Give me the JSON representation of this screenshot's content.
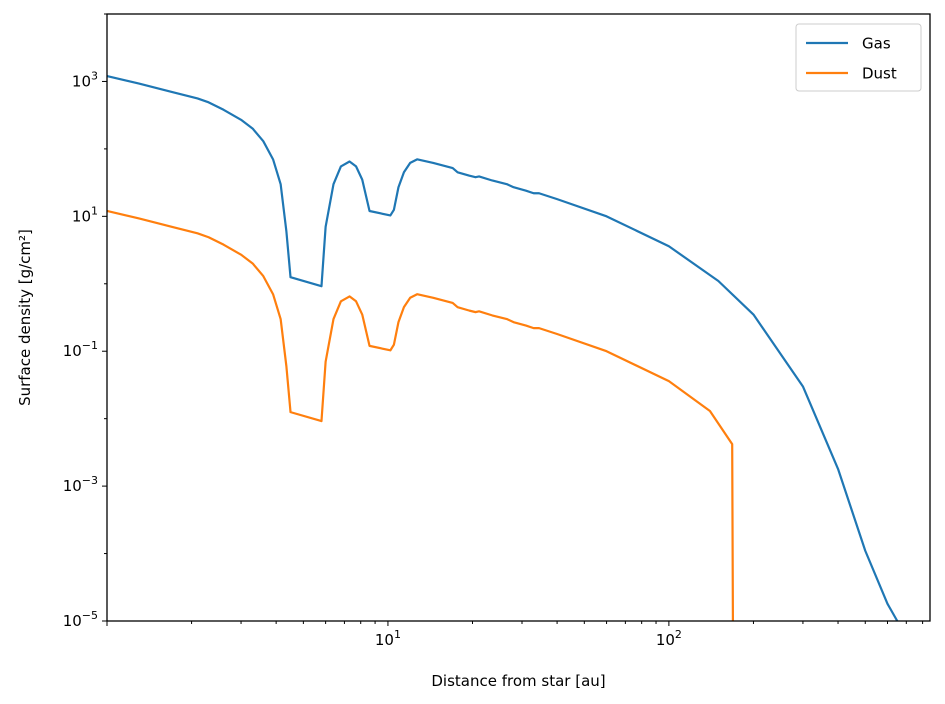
{
  "chart_data": {
    "type": "line",
    "xlabel": "Distance from star [au]",
    "ylabel": "Surface density [g/cm²]",
    "xscale": "log",
    "yscale": "log",
    "xlim": [
      1.0,
      850
    ],
    "ylim": [
      1e-05,
      10000
    ],
    "grid": false,
    "legend_position": "top-right",
    "x_tick_labels": [
      {
        "value": 10,
        "base": "10",
        "exp": "1"
      },
      {
        "value": 100,
        "base": "10",
        "exp": "2"
      }
    ],
    "y_tick_labels": [
      {
        "value": 1e-05,
        "base": "10",
        "exp": "−5"
      },
      {
        "value": 0.001,
        "base": "10",
        "exp": "−3"
      },
      {
        "value": 0.1,
        "base": "10",
        "exp": "−1"
      },
      {
        "value": 10,
        "base": "10",
        "exp": "1"
      },
      {
        "value": 1000,
        "base": "10",
        "exp": "3"
      }
    ],
    "series": [
      {
        "name": "Gas",
        "color": "#1f77b4",
        "points": [
          [
            1.0,
            1200
          ],
          [
            1.3,
            930
          ],
          [
            1.7,
            700
          ],
          [
            2.1,
            560
          ],
          [
            2.3,
            490
          ],
          [
            2.6,
            380
          ],
          [
            3.0,
            270
          ],
          [
            3.3,
            200
          ],
          [
            3.6,
            130
          ],
          [
            3.9,
            70
          ],
          [
            4.15,
            30
          ],
          [
            4.35,
            6
          ],
          [
            4.5,
            1.25
          ],
          [
            5.8,
            0.92
          ],
          [
            6.0,
            7
          ],
          [
            6.4,
            30
          ],
          [
            6.8,
            55
          ],
          [
            7.3,
            65
          ],
          [
            7.7,
            55
          ],
          [
            8.1,
            35
          ],
          [
            8.6,
            12
          ],
          [
            10.2,
            10.3
          ],
          [
            10.5,
            12.5
          ],
          [
            10.9,
            27
          ],
          [
            11.4,
            45
          ],
          [
            12.0,
            62
          ],
          [
            12.7,
            70
          ],
          [
            14.5,
            62
          ],
          [
            17.0,
            52
          ],
          [
            17.7,
            45
          ],
          [
            19.5,
            40
          ],
          [
            20.5,
            38
          ],
          [
            21.1,
            39
          ],
          [
            23.5,
            34
          ],
          [
            26.5,
            30
          ],
          [
            28.0,
            27
          ],
          [
            31.0,
            24
          ],
          [
            33.0,
            22
          ],
          [
            34.5,
            22
          ],
          [
            40,
            18
          ],
          [
            60,
            10
          ],
          [
            100,
            3.6
          ],
          [
            150,
            1.1
          ],
          [
            200,
            0.35
          ],
          [
            300,
            0.03
          ],
          [
            400,
            0.0018
          ],
          [
            500,
            0.00011
          ],
          [
            600,
            1.8e-05
          ],
          [
            650,
            1e-05
          ]
        ]
      },
      {
        "name": "Dust",
        "color": "#ff7f0e",
        "points": [
          [
            1.0,
            12
          ],
          [
            1.3,
            9.3
          ],
          [
            1.7,
            7
          ],
          [
            2.1,
            5.6
          ],
          [
            2.3,
            4.9
          ],
          [
            2.6,
            3.8
          ],
          [
            3.0,
            2.7
          ],
          [
            3.3,
            2.0
          ],
          [
            3.6,
            1.3
          ],
          [
            3.9,
            0.7
          ],
          [
            4.15,
            0.3
          ],
          [
            4.35,
            0.06
          ],
          [
            4.5,
            0.0125
          ],
          [
            5.8,
            0.0092
          ],
          [
            6.0,
            0.07
          ],
          [
            6.4,
            0.3
          ],
          [
            6.8,
            0.55
          ],
          [
            7.3,
            0.65
          ],
          [
            7.7,
            0.55
          ],
          [
            8.1,
            0.35
          ],
          [
            8.6,
            0.12
          ],
          [
            10.2,
            0.103
          ],
          [
            10.5,
            0.125
          ],
          [
            10.9,
            0.27
          ],
          [
            11.4,
            0.45
          ],
          [
            12.0,
            0.62
          ],
          [
            12.7,
            0.7
          ],
          [
            14.5,
            0.62
          ],
          [
            17.0,
            0.52
          ],
          [
            17.7,
            0.45
          ],
          [
            19.5,
            0.4
          ],
          [
            20.5,
            0.38
          ],
          [
            21.1,
            0.39
          ],
          [
            23.5,
            0.34
          ],
          [
            26.5,
            0.3
          ],
          [
            28.0,
            0.27
          ],
          [
            31.0,
            0.24
          ],
          [
            33.0,
            0.22
          ],
          [
            34.5,
            0.22
          ],
          [
            40,
            0.18
          ],
          [
            60,
            0.1
          ],
          [
            100,
            0.036
          ],
          [
            140,
            0.013
          ],
          [
            168,
            0.0042
          ],
          [
            169,
            1e-05
          ]
        ]
      }
    ]
  }
}
